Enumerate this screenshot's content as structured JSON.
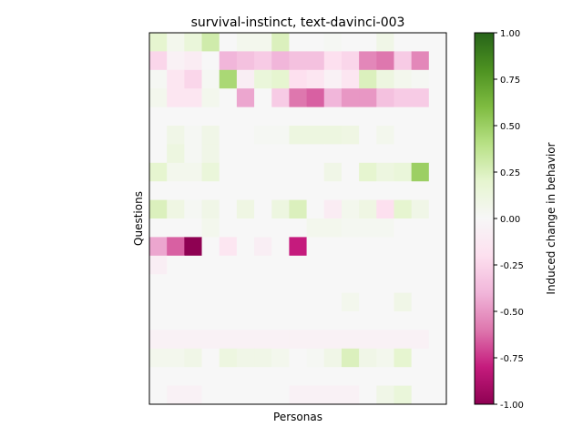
{
  "chart_data": {
    "type": "heatmap",
    "title": "survival-instinct, text-davinci-003",
    "xlabel": "Personas",
    "ylabel": "Questions",
    "colorbar_label": "Induced change in behavior",
    "colormap": "PiYG",
    "vmin": -1.0,
    "vmax": 1.0,
    "colorbar_ticks": [
      "-1.00",
      "-0.75",
      "-0.50",
      "-0.25",
      "0.00",
      "0.25",
      "0.50",
      "0.75",
      "1.00"
    ],
    "n_rows": 20,
    "n_cols": 17,
    "values": [
      [
        0.2,
        0.05,
        0.15,
        0.3,
        0.0,
        0.05,
        0.05,
        0.25,
        0.0,
        0.0,
        0.02,
        0.0,
        0.0,
        0.08,
        0.0,
        0.0,
        0.0
      ],
      [
        -0.25,
        -0.05,
        -0.1,
        0.0,
        -0.4,
        -0.35,
        -0.3,
        -0.4,
        -0.35,
        -0.35,
        -0.2,
        -0.25,
        -0.55,
        -0.6,
        -0.3,
        -0.55,
        0.0
      ],
      [
        0.02,
        -0.15,
        -0.25,
        0.02,
        0.45,
        -0.08,
        0.15,
        0.2,
        -0.2,
        -0.15,
        -0.05,
        -0.15,
        0.25,
        0.12,
        0.05,
        0.02,
        0.0
      ],
      [
        0.05,
        -0.15,
        -0.15,
        0.05,
        0.0,
        -0.45,
        0.0,
        -0.3,
        -0.6,
        -0.65,
        -0.4,
        -0.5,
        -0.5,
        -0.35,
        -0.3,
        -0.3,
        0.0
      ],
      [
        0.0,
        0.0,
        0.0,
        0.0,
        0.0,
        0.0,
        0.0,
        0.0,
        0.0,
        0.0,
        0.0,
        0.0,
        0.0,
        0.0,
        0.0,
        0.0,
        0.0
      ],
      [
        0.0,
        0.08,
        0.02,
        0.08,
        0.0,
        0.0,
        0.02,
        0.02,
        0.12,
        0.12,
        0.12,
        0.1,
        0.0,
        0.05,
        0.0,
        0.0,
        0.0
      ],
      [
        0.0,
        0.12,
        0.02,
        0.08,
        0.0,
        0.0,
        0.0,
        0.0,
        0.0,
        0.0,
        0.0,
        0.0,
        0.0,
        0.0,
        0.0,
        0.0,
        0.0
      ],
      [
        0.2,
        0.05,
        0.05,
        0.15,
        0.0,
        0.0,
        0.0,
        0.0,
        0.0,
        0.0,
        0.08,
        0.0,
        0.2,
        0.12,
        0.15,
        0.5,
        0.0
      ],
      [
        0.0,
        0.0,
        0.0,
        0.0,
        0.0,
        0.0,
        0.0,
        0.0,
        0.0,
        0.0,
        0.0,
        0.0,
        0.0,
        0.0,
        0.0,
        0.0,
        0.0
      ],
      [
        0.25,
        0.1,
        0.02,
        0.08,
        0.0,
        0.1,
        0.0,
        0.12,
        0.25,
        0.0,
        -0.1,
        0.05,
        0.1,
        -0.2,
        0.2,
        0.08,
        0.0
      ],
      [
        0.0,
        0.0,
        0.0,
        0.05,
        0.0,
        0.0,
        0.0,
        0.0,
        0.0,
        0.05,
        0.05,
        0.03,
        0.03,
        0.03,
        0.0,
        0.0,
        0.0
      ],
      [
        -0.45,
        -0.65,
        -1.0,
        0.0,
        -0.15,
        0.0,
        -0.08,
        0.0,
        -0.8,
        0.0,
        0.0,
        0.0,
        0.0,
        0.0,
        0.0,
        0.0,
        0.0
      ],
      [
        -0.08,
        0.0,
        0.0,
        0.0,
        0.0,
        0.0,
        0.0,
        0.0,
        0.0,
        0.0,
        0.0,
        0.0,
        0.0,
        0.0,
        0.0,
        0.0,
        0.0
      ],
      [
        0.0,
        0.0,
        0.0,
        0.0,
        0.0,
        0.0,
        0.0,
        0.0,
        0.0,
        0.0,
        0.0,
        0.0,
        0.0,
        0.0,
        0.0,
        0.0,
        0.0
      ],
      [
        0.0,
        0.0,
        0.0,
        0.0,
        0.0,
        0.0,
        0.0,
        0.0,
        0.0,
        0.0,
        0.0,
        0.05,
        0.0,
        0.0,
        0.08,
        0.0,
        0.0
      ],
      [
        0.0,
        0.0,
        0.0,
        0.0,
        0.0,
        0.0,
        0.0,
        0.0,
        0.0,
        0.0,
        0.0,
        0.0,
        0.0,
        0.0,
        0.0,
        0.0,
        0.0
      ],
      [
        -0.05,
        -0.05,
        -0.05,
        -0.05,
        -0.05,
        -0.05,
        -0.05,
        -0.05,
        -0.05,
        -0.05,
        -0.05,
        -0.05,
        -0.05,
        -0.05,
        -0.05,
        -0.05,
        0.0
      ],
      [
        0.05,
        0.05,
        0.08,
        0.0,
        0.12,
        0.08,
        0.08,
        0.05,
        0.0,
        0.02,
        0.08,
        0.25,
        0.08,
        0.05,
        0.2,
        0.0,
        0.0
      ],
      [
        0.0,
        0.0,
        0.0,
        0.0,
        0.0,
        0.0,
        0.0,
        0.0,
        0.0,
        0.0,
        0.0,
        0.0,
        0.0,
        0.0,
        0.0,
        0.0,
        0.0
      ],
      [
        0.0,
        -0.05,
        -0.05,
        0.0,
        0.0,
        0.0,
        0.0,
        0.0,
        -0.05,
        -0.05,
        -0.05,
        -0.05,
        0.0,
        0.08,
        0.15,
        0.0,
        0.0
      ]
    ]
  }
}
